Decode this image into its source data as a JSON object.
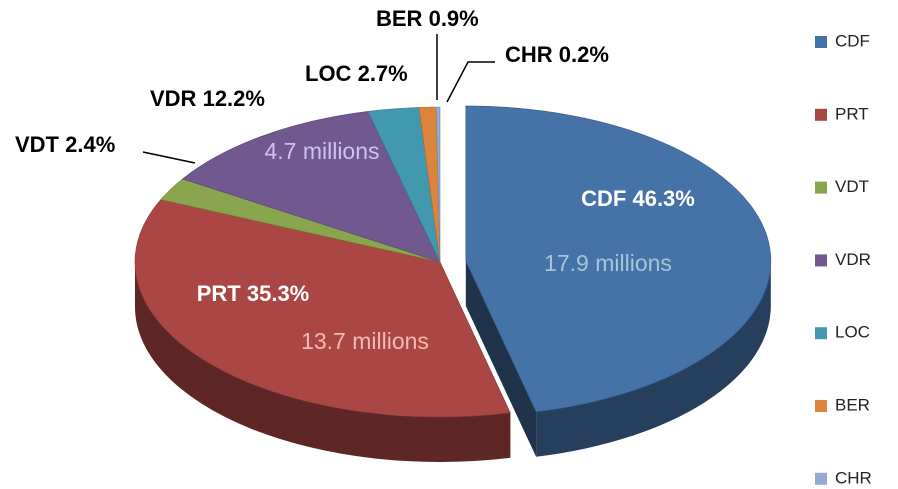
{
  "chart_data": {
    "type": "pie",
    "categories": [
      "CDF",
      "PRT",
      "VDT",
      "VDR",
      "LOC",
      "BER",
      "CHR"
    ],
    "values": [
      46.3,
      35.3,
      2.4,
      12.2,
      2.7,
      0.9,
      0.2
    ],
    "value_labels": [
      "46.3%",
      "35.3%",
      "2.4%",
      "12.2%",
      "2.7%",
      "0.9%",
      "0.2%"
    ],
    "colors": [
      "#4572a7",
      "#aa4643",
      "#89a54e",
      "#71588f",
      "#4198af",
      "#db843d",
      "#93a9cf"
    ],
    "annotations": [
      {
        "category": "CDF",
        "text": "17.9 millions"
      },
      {
        "category": "PRT",
        "text": "13.7 millions"
      },
      {
        "category": "VDR",
        "text": "4.7 millions"
      }
    ],
    "legend": "right"
  }
}
